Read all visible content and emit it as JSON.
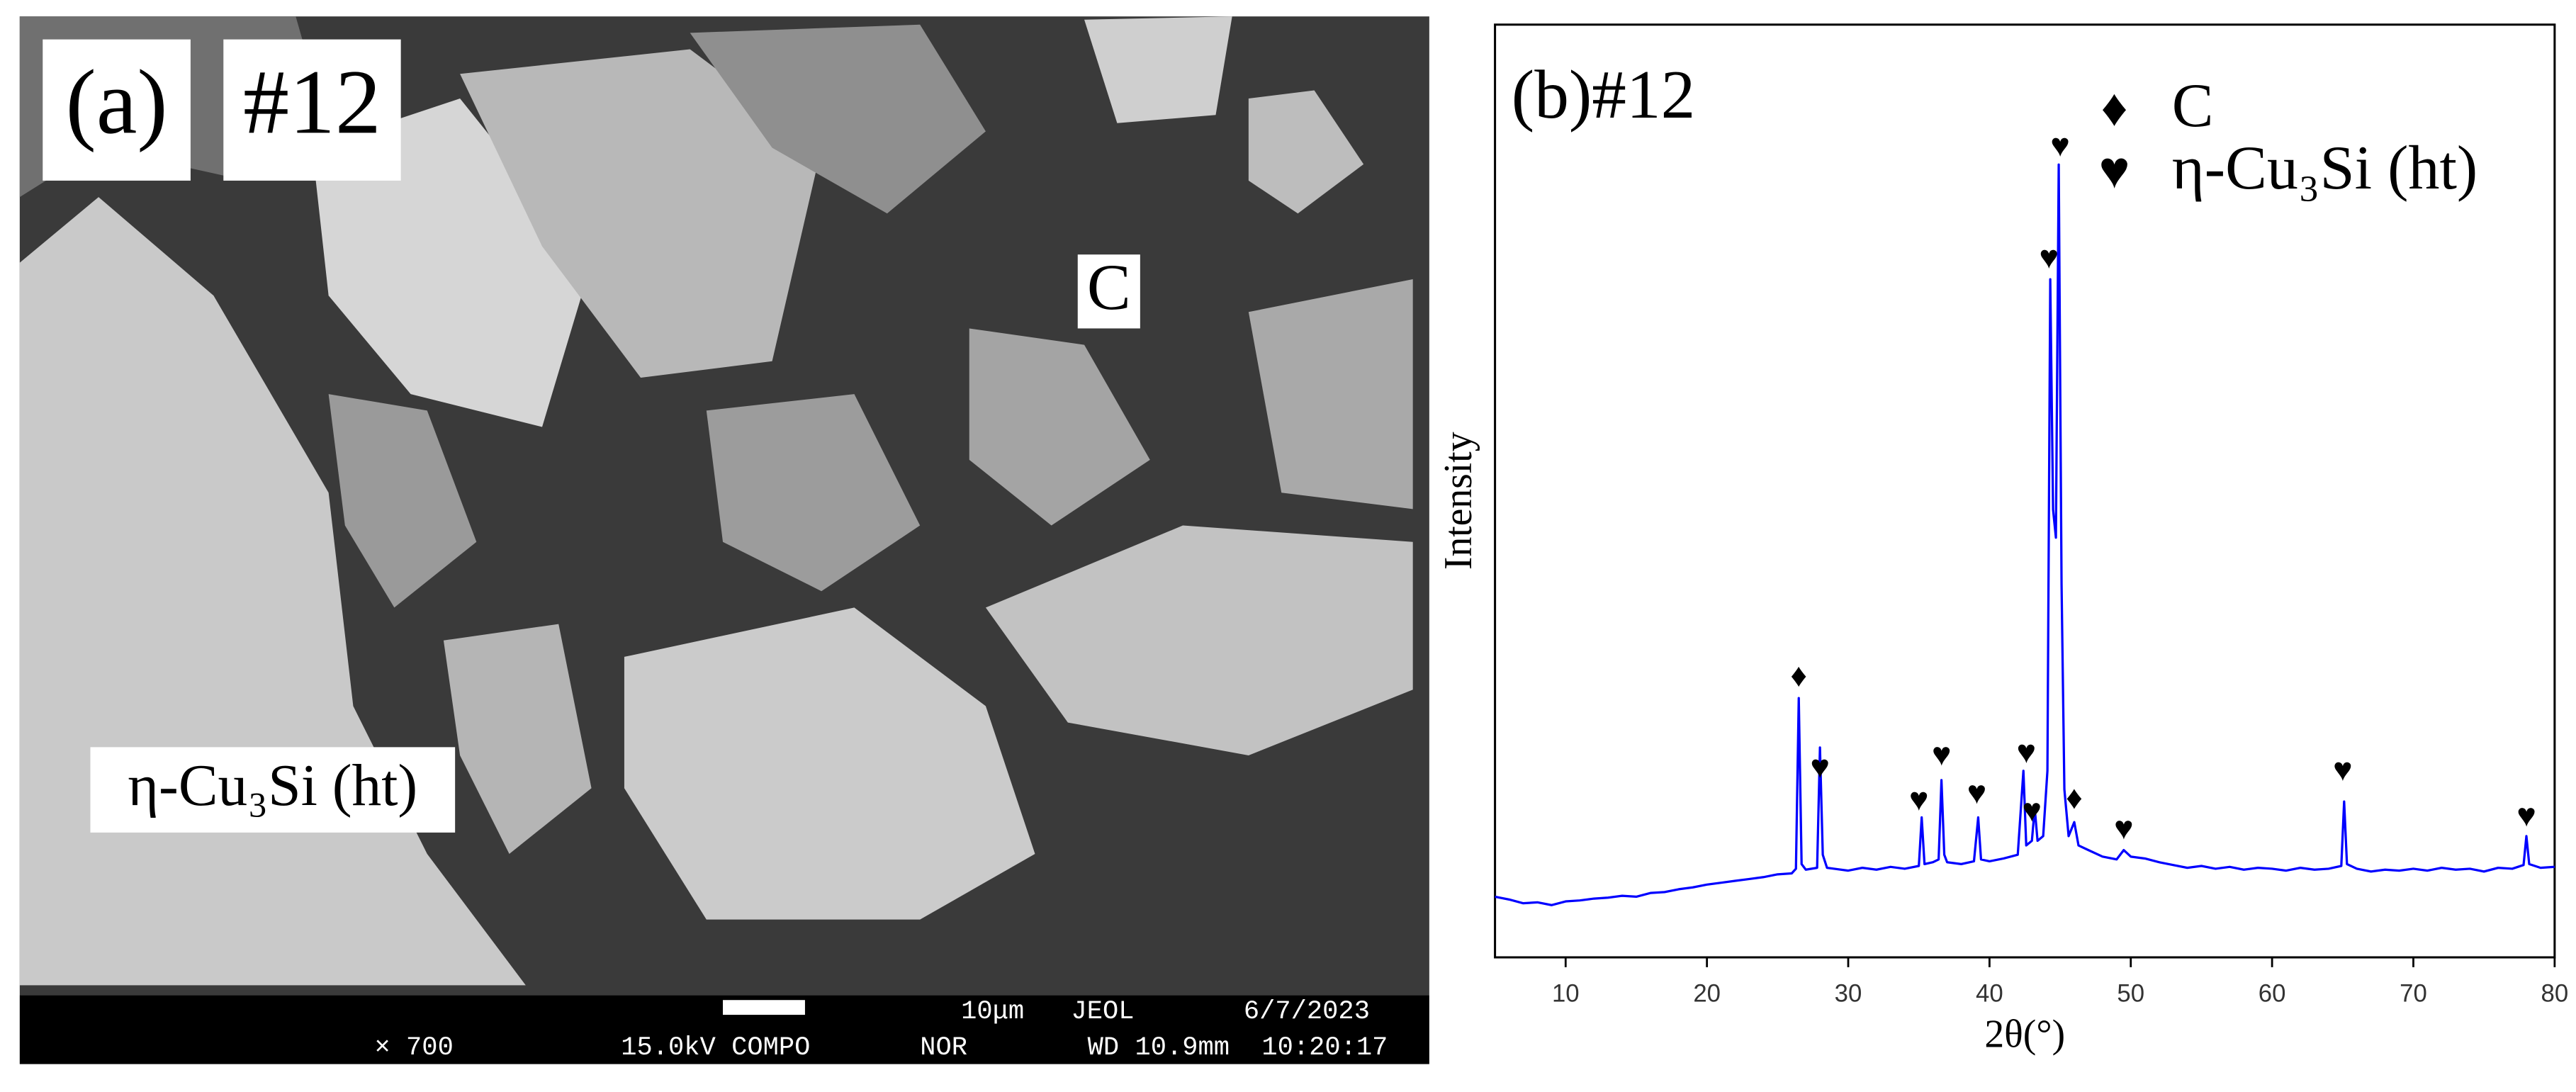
{
  "panel_a": {
    "label": "(a)",
    "sample": "#12",
    "phase_labels": [
      "C",
      "η-Cu₃Si (ht)"
    ],
    "info_bar": {
      "magnification": "× 700",
      "voltage": "15.0kV COMPO",
      "scale": "10μm",
      "maker": "JEOL",
      "date": "6/7/2023",
      "mode": "NOR",
      "wd": "WD 10.9mm",
      "time": "10:20:17"
    }
  },
  "chart_data": {
    "type": "line",
    "title": "(b)#12",
    "x_label": "2θ(°)",
    "y_label": "Intensity",
    "color": "#0000ff",
    "x": [
      5,
      6,
      7,
      8,
      9,
      10,
      11,
      12,
      13,
      14,
      15,
      16,
      17,
      18,
      19,
      20,
      21,
      22,
      23,
      24,
      25,
      26,
      26.3,
      26.5,
      26.7,
      27,
      27.8,
      28,
      28.2,
      28.5,
      29,
      30,
      31,
      32,
      33,
      34,
      35,
      35.2,
      35.4,
      36,
      36.4,
      36.6,
      36.8,
      37,
      38,
      38.9,
      39.2,
      39.4,
      40,
      41,
      42,
      42.4,
      42.6,
      43,
      43.2,
      43.4,
      43.8,
      44.1,
      44.3,
      44.5,
      44.7,
      44.9,
      45.1,
      45.3,
      45.6,
      46,
      46.3,
      47,
      48,
      49,
      49.5,
      50,
      51,
      52,
      53,
      54,
      55,
      56,
      57,
      58,
      59,
      60,
      61,
      62,
      63,
      64,
      64.9,
      65.1,
      65.3,
      66,
      67,
      68,
      69,
      70,
      71,
      72,
      73,
      74,
      75,
      76,
      77,
      77.8,
      78,
      78.2,
      79,
      80
    ],
    "values": [
      6.5,
      6.2,
      5.8,
      5.9,
      5.6,
      6.0,
      6.1,
      6.3,
      6.4,
      6.6,
      6.5,
      6.9,
      7.0,
      7.3,
      7.5,
      7.8,
      8.0,
      8.2,
      8.4,
      8.6,
      8.9,
      9.0,
      9.5,
      27.8,
      10,
      9.4,
      9.6,
      22.5,
      11,
      9.6,
      9.5,
      9.3,
      9.6,
      9.4,
      9.7,
      9.5,
      9.8,
      15,
      10,
      10.2,
      10.5,
      19,
      11,
      10.2,
      10.0,
      10.3,
      15,
      10.5,
      10.3,
      10.6,
      11,
      20,
      12,
      12.5,
      16,
      12.5,
      13,
      20,
      72.7,
      48,
      45,
      85,
      40,
      18,
      13,
      14.5,
      12,
      11.5,
      10.8,
      10.5,
      11.5,
      10.8,
      10.6,
      10.2,
      9.9,
      9.6,
      9.8,
      9.5,
      9.7,
      9.4,
      9.6,
      9.5,
      9.3,
      9.6,
      9.4,
      9.5,
      9.8,
      16.7,
      10,
      9.5,
      9.2,
      9.4,
      9.3,
      9.5,
      9.3,
      9.6,
      9.4,
      9.5,
      9.2,
      9.6,
      9.5,
      9.9,
      13,
      10,
      9.6,
      9.7
    ],
    "xlim": [
      5,
      80
    ],
    "ylim": [
      0,
      100
    ],
    "xticks": [
      10,
      20,
      30,
      40,
      50,
      60,
      70,
      80
    ],
    "annotations": [
      {
        "text": "♦",
        "x": 26.5,
        "y": 30
      },
      {
        "text": "♥",
        "x": 28,
        "y": 20.2
      },
      {
        "text": "♥",
        "x": 35,
        "y": 16.7
      },
      {
        "text": "♥",
        "x": 36.6,
        "y": 21.5
      },
      {
        "text": "♥",
        "x": 39.1,
        "y": 17.4
      },
      {
        "text": "♥",
        "x": 42.6,
        "y": 21.8
      },
      {
        "text": "♥",
        "x": 43,
        "y": 15.5
      },
      {
        "text": "♥",
        "x": 44.2,
        "y": 74.8
      },
      {
        "text": "♥",
        "x": 45,
        "y": 86.8
      },
      {
        "text": "♦",
        "x": 46,
        "y": 16.9
      },
      {
        "text": "♥",
        "x": 49.5,
        "y": 13.6
      },
      {
        "text": "♥",
        "x": 65,
        "y": 19.9
      },
      {
        "text": "♥",
        "x": 78,
        "y": 15
      }
    ],
    "legend": [
      {
        "symbol": "♦",
        "label": "C"
      },
      {
        "symbol": "♥",
        "label": "η-Cu₃Si (ht)"
      }
    ]
  }
}
